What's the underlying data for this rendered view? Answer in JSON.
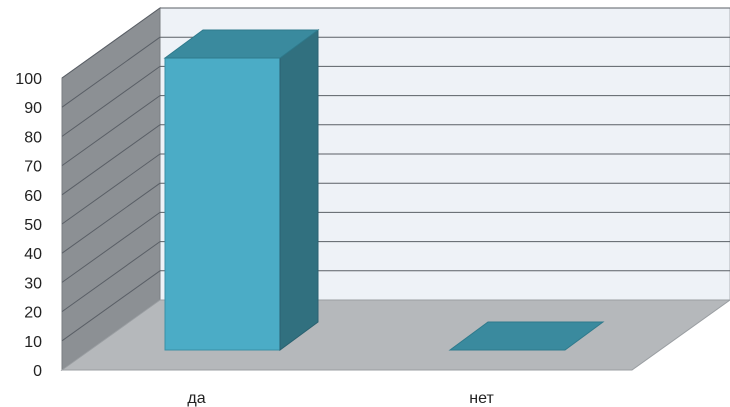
{
  "chart_data": {
    "type": "bar",
    "style": "3d-column",
    "categories": [
      "да",
      "нет"
    ],
    "values": [
      100,
      0
    ],
    "ylim": [
      0,
      100
    ],
    "yticks": [
      0,
      10,
      20,
      30,
      40,
      50,
      60,
      70,
      80,
      90,
      100
    ],
    "title": "",
    "xlabel": "",
    "ylabel": "",
    "legend": "none",
    "grid": true,
    "colors": {
      "bar_front": "#4bacc6",
      "bar_side": "#31707f",
      "bar_top": "#3a8a9e",
      "back_wall": "#eef2f7",
      "side_wall": "#8c9094",
      "floor": "#b5b8bb",
      "gridline": "#5a5f66"
    }
  }
}
